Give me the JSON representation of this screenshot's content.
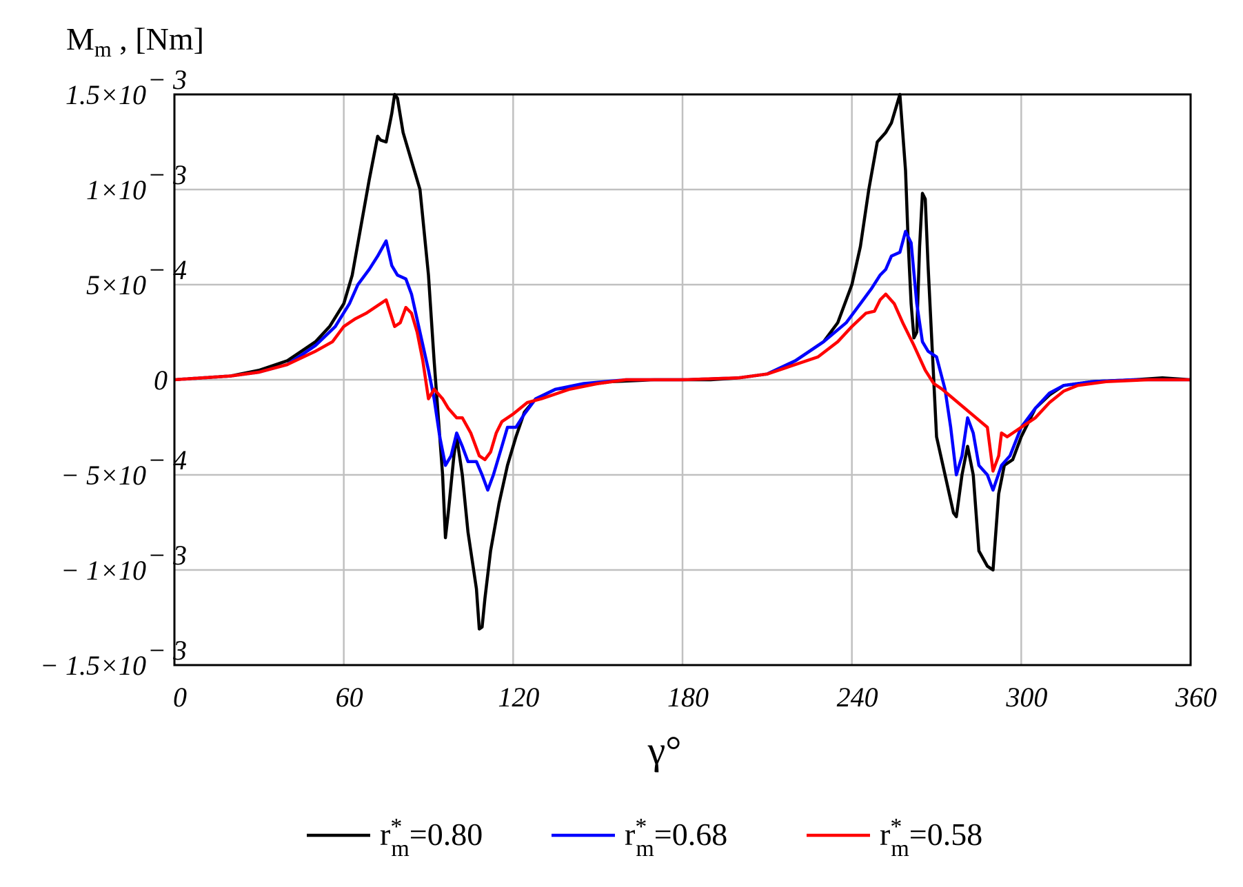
{
  "chart_data": {
    "type": "line",
    "title": "",
    "ylabel": {
      "main": "M",
      "sub": "m",
      "rest": " , [Nm]"
    },
    "xlabel": "γ°",
    "xlim": [
      0,
      360
    ],
    "ylim": [
      -0.0015,
      0.0015
    ],
    "grid": true,
    "legend_position": "bottom",
    "x_ticks": [
      {
        "value": 0,
        "label": "0"
      },
      {
        "value": 60,
        "label": "60"
      },
      {
        "value": 120,
        "label": "120"
      },
      {
        "value": 180,
        "label": "180"
      },
      {
        "value": 240,
        "label": "240"
      },
      {
        "value": 300,
        "label": "300"
      },
      {
        "value": 360,
        "label": "360"
      }
    ],
    "y_ticks": [
      {
        "value": 0.0015,
        "mant": "1.5×10",
        "exp": "− 3"
      },
      {
        "value": 0.001,
        "mant": "1×10",
        "exp": "− 3"
      },
      {
        "value": 0.0005,
        "mant": "5×10",
        "exp": "− 4"
      },
      {
        "value": 0,
        "mant": "0",
        "exp": ""
      },
      {
        "value": -0.0005,
        "mant": "− 5×10",
        "exp": "− 4"
      },
      {
        "value": -0.001,
        "mant": "− 1×10",
        "exp": "− 3"
      },
      {
        "value": -0.0015,
        "mant": "− 1.5×10",
        "exp": "− 3"
      }
    ],
    "series": [
      {
        "label": {
          "base": "r",
          "sup": "*",
          "sub": "m",
          "value": "=0.80"
        },
        "color": "#000000",
        "points": [
          [
            0,
            0
          ],
          [
            10,
            1e-05
          ],
          [
            20,
            2e-05
          ],
          [
            30,
            5e-05
          ],
          [
            40,
            0.0001
          ],
          [
            50,
            0.0002
          ],
          [
            55,
            0.00028
          ],
          [
            60,
            0.0004
          ],
          [
            63,
            0.00055
          ],
          [
            66,
            0.0008
          ],
          [
            69,
            0.00105
          ],
          [
            72,
            0.00128
          ],
          [
            73,
            0.00126
          ],
          [
            75,
            0.00125
          ],
          [
            77,
            0.0014
          ],
          [
            78,
            0.0015
          ],
          [
            79,
            0.00148
          ],
          [
            81,
            0.0013
          ],
          [
            84,
            0.00115
          ],
          [
            87,
            0.001
          ],
          [
            90,
            0.00055
          ],
          [
            92,
            0.0001
          ],
          [
            94,
            -0.0003
          ],
          [
            95,
            -0.0005
          ],
          [
            96,
            -0.00083
          ],
          [
            97,
            -0.0007
          ],
          [
            99,
            -0.0004
          ],
          [
            100,
            -0.0003
          ],
          [
            102,
            -0.0005
          ],
          [
            104,
            -0.0008
          ],
          [
            107,
            -0.0011
          ],
          [
            108,
            -0.00131
          ],
          [
            109,
            -0.0013
          ],
          [
            110,
            -0.00115
          ],
          [
            112,
            -0.0009
          ],
          [
            115,
            -0.00065
          ],
          [
            118,
            -0.00045
          ],
          [
            121,
            -0.0003
          ],
          [
            124,
            -0.00017
          ],
          [
            128,
            -0.0001
          ],
          [
            135,
            -5e-05
          ],
          [
            145,
            -3e-05
          ],
          [
            155,
            -1e-05
          ],
          [
            170,
            0
          ],
          [
            190,
            0
          ],
          [
            200,
            1e-05
          ],
          [
            210,
            3e-05
          ],
          [
            220,
            0.0001
          ],
          [
            230,
            0.0002
          ],
          [
            235,
            0.0003
          ],
          [
            240,
            0.0005
          ],
          [
            243,
            0.0007
          ],
          [
            246,
            0.001
          ],
          [
            249,
            0.00125
          ],
          [
            252,
            0.0013
          ],
          [
            254,
            0.00135
          ],
          [
            256,
            0.00145
          ],
          [
            257,
            0.0015
          ],
          [
            258,
            0.0013
          ],
          [
            259,
            0.0011
          ],
          [
            260,
            0.0007
          ],
          [
            261,
            0.0004
          ],
          [
            262,
            0.00022
          ],
          [
            263,
            0.00025
          ],
          [
            264,
            0.0007
          ],
          [
            265,
            0.00098
          ],
          [
            266,
            0.00095
          ],
          [
            267,
            0.0006
          ],
          [
            268,
            0.0003
          ],
          [
            270,
            -0.0003
          ],
          [
            273,
            -0.0005
          ],
          [
            276,
            -0.0007
          ],
          [
            277,
            -0.00072
          ],
          [
            279,
            -0.0005
          ],
          [
            281,
            -0.00035
          ],
          [
            283,
            -0.0005
          ],
          [
            285,
            -0.0009
          ],
          [
            288,
            -0.00098
          ],
          [
            290,
            -0.001
          ],
          [
            292,
            -0.0006
          ],
          [
            294,
            -0.00045
          ],
          [
            297,
            -0.00042
          ],
          [
            300,
            -0.0003
          ],
          [
            305,
            -0.00015
          ],
          [
            310,
            -8e-05
          ],
          [
            315,
            -3e-05
          ],
          [
            325,
            -1e-05
          ],
          [
            340,
            0
          ],
          [
            350,
            1e-05
          ],
          [
            360,
            0
          ]
        ]
      },
      {
        "label": {
          "base": "r",
          "sup": "*",
          "sub": "m",
          "value": "=0.68"
        },
        "color": "#0000ff",
        "points": [
          [
            0,
            0
          ],
          [
            10,
            1e-05
          ],
          [
            20,
            2e-05
          ],
          [
            30,
            4e-05
          ],
          [
            40,
            8e-05
          ],
          [
            50,
            0.00018
          ],
          [
            57,
            0.00028
          ],
          [
            62,
            0.0004
          ],
          [
            65,
            0.0005
          ],
          [
            69,
            0.00058
          ],
          [
            72,
            0.00065
          ],
          [
            75,
            0.00073
          ],
          [
            77,
            0.0006
          ],
          [
            79,
            0.00055
          ],
          [
            82,
            0.00053
          ],
          [
            84,
            0.00045
          ],
          [
            87,
            0.00025
          ],
          [
            90,
            5e-05
          ],
          [
            92,
            -0.0001
          ],
          [
            94,
            -0.0003
          ],
          [
            96,
            -0.00045
          ],
          [
            98,
            -0.0004
          ],
          [
            100,
            -0.00028
          ],
          [
            102,
            -0.00035
          ],
          [
            104,
            -0.00043
          ],
          [
            107,
            -0.00043
          ],
          [
            109,
            -0.0005
          ],
          [
            111,
            -0.00058
          ],
          [
            113,
            -0.0005
          ],
          [
            116,
            -0.00035
          ],
          [
            118,
            -0.00025
          ],
          [
            121,
            -0.00025
          ],
          [
            124,
            -0.00018
          ],
          [
            128,
            -0.0001
          ],
          [
            135,
            -5e-05
          ],
          [
            145,
            -2e-05
          ],
          [
            160,
            0
          ],
          [
            180,
            0
          ],
          [
            200,
            1e-05
          ],
          [
            210,
            3e-05
          ],
          [
            220,
            0.0001
          ],
          [
            230,
            0.0002
          ],
          [
            238,
            0.0003
          ],
          [
            243,
            0.0004
          ],
          [
            247,
            0.00048
          ],
          [
            250,
            0.00055
          ],
          [
            252,
            0.00058
          ],
          [
            254,
            0.00065
          ],
          [
            257,
            0.00067
          ],
          [
            259,
            0.00078
          ],
          [
            261,
            0.00072
          ],
          [
            263,
            0.0004
          ],
          [
            265,
            0.0002
          ],
          [
            267,
            0.00015
          ],
          [
            270,
            0.00012
          ],
          [
            273,
            -5e-05
          ],
          [
            275,
            -0.00025
          ],
          [
            277,
            -0.0005
          ],
          [
            279,
            -0.0004
          ],
          [
            281,
            -0.0002
          ],
          [
            283,
            -0.00028
          ],
          [
            285,
            -0.00045
          ],
          [
            288,
            -0.0005
          ],
          [
            290,
            -0.00058
          ],
          [
            293,
            -0.00045
          ],
          [
            296,
            -0.0004
          ],
          [
            300,
            -0.00025
          ],
          [
            305,
            -0.00015
          ],
          [
            310,
            -7e-05
          ],
          [
            315,
            -3e-05
          ],
          [
            325,
            -1e-05
          ],
          [
            340,
            0
          ],
          [
            360,
            0
          ]
        ]
      },
      {
        "label": {
          "base": "r",
          "sup": "*",
          "sub": "m",
          "value": "=0.58"
        },
        "color": "#ff0000",
        "points": [
          [
            0,
            0
          ],
          [
            10,
            1e-05
          ],
          [
            20,
            2e-05
          ],
          [
            30,
            4e-05
          ],
          [
            40,
            8e-05
          ],
          [
            50,
            0.00015
          ],
          [
            56,
            0.0002
          ],
          [
            60,
            0.00028
          ],
          [
            64,
            0.00032
          ],
          [
            68,
            0.00035
          ],
          [
            70,
            0.00037
          ],
          [
            73,
            0.0004
          ],
          [
            75,
            0.00042
          ],
          [
            78,
            0.00028
          ],
          [
            80,
            0.0003
          ],
          [
            82,
            0.00038
          ],
          [
            84,
            0.00035
          ],
          [
            86,
            0.00025
          ],
          [
            88,
            0.0001
          ],
          [
            90,
            -0.0001
          ],
          [
            92,
            -5e-05
          ],
          [
            95,
            -0.0001
          ],
          [
            97,
            -0.00015
          ],
          [
            100,
            -0.0002
          ],
          [
            102,
            -0.0002
          ],
          [
            105,
            -0.00028
          ],
          [
            108,
            -0.0004
          ],
          [
            110,
            -0.00042
          ],
          [
            112,
            -0.00038
          ],
          [
            114,
            -0.00028
          ],
          [
            116,
            -0.00022
          ],
          [
            120,
            -0.00018
          ],
          [
            125,
            -0.00012
          ],
          [
            130,
            -0.0001
          ],
          [
            140,
            -5e-05
          ],
          [
            150,
            -2e-05
          ],
          [
            160,
            0
          ],
          [
            180,
            0
          ],
          [
            200,
            1e-05
          ],
          [
            210,
            3e-05
          ],
          [
            220,
            8e-05
          ],
          [
            228,
            0.00012
          ],
          [
            235,
            0.0002
          ],
          [
            240,
            0.00028
          ],
          [
            245,
            0.00035
          ],
          [
            248,
            0.00036
          ],
          [
            250,
            0.00042
          ],
          [
            252,
            0.00045
          ],
          [
            255,
            0.0004
          ],
          [
            258,
            0.0003
          ],
          [
            262,
            0.00018
          ],
          [
            266,
            5e-05
          ],
          [
            269,
            -2e-05
          ],
          [
            272,
            -5e-05
          ],
          [
            276,
            -0.0001
          ],
          [
            280,
            -0.00015
          ],
          [
            284,
            -0.0002
          ],
          [
            288,
            -0.00025
          ],
          [
            290,
            -0.00048
          ],
          [
            292,
            -0.0004
          ],
          [
            293,
            -0.00028
          ],
          [
            295,
            -0.0003
          ],
          [
            297,
            -0.00028
          ],
          [
            300,
            -0.00025
          ],
          [
            305,
            -0.0002
          ],
          [
            310,
            -0.00012
          ],
          [
            315,
            -6e-05
          ],
          [
            320,
            -3e-05
          ],
          [
            330,
            -1e-05
          ],
          [
            345,
            0
          ],
          [
            360,
            0
          ]
        ]
      }
    ]
  }
}
